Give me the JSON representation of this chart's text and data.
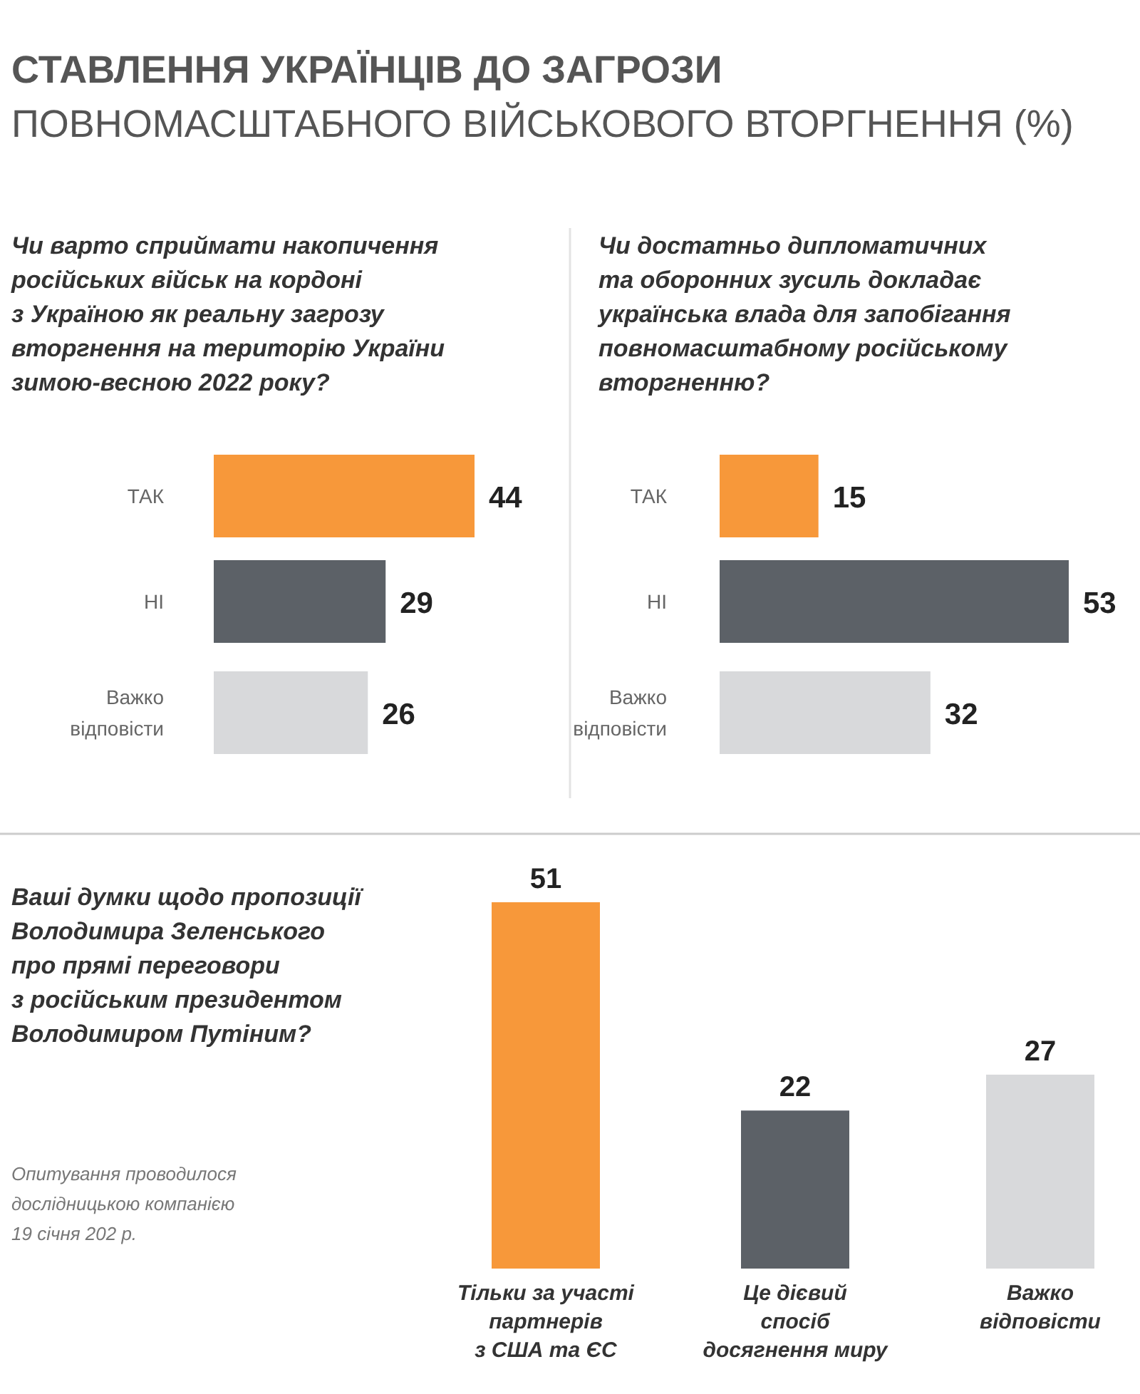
{
  "chart_data": [
    {
      "type": "bar",
      "orientation": "horizontal",
      "title": "СТАВЛЕННЯ УКРАЇНЦІВ ДО ЗАГРОЗИ\nПОВНОМАСШТАБНОГО ВІЙСЬКОВОГО ВТОРГНЕННЯ (%)",
      "subtitle": "Чи варто сприймати накопичення\nросійських військ на кордоні\nз Україною як реальну загрозу\nвторгнення на територію України\nзимою-весною 2022 року?",
      "categories": [
        "ТАК",
        "НІ",
        "Важко\nвідповісти"
      ],
      "values": [
        44,
        29,
        26
      ],
      "colors": [
        "#f7983a",
        "#5c6167",
        "#d8d9db"
      ],
      "data_labels": true
    },
    {
      "type": "bar",
      "orientation": "horizontal",
      "subtitle": "Чи достатньо дипломатичних\nта оборонних зусиль докладає\nукраїнська влада для запобігання\nповномасштабному російському\nвторгненню?",
      "categories": [
        "ТАК",
        "НІ",
        "Важко\nвідповісти"
      ],
      "values": [
        15,
        53,
        32
      ],
      "colors": [
        "#f7983a",
        "#5c6167",
        "#d8d9db"
      ],
      "data_labels": true
    },
    {
      "type": "bar",
      "subtitle": "Ваші думки щодо пропозиції\nВолодимира Зеленського\nпро прямі переговори\nз російським президентом\nВолодимиром Путіним?",
      "categories": [
        "Тільки за участі\nпартнерів\nз США та ЄС",
        "Це дієвий\nспосіб\nдосягнення миру",
        "Важко\nвідповісти"
      ],
      "values": [
        51,
        22,
        27
      ],
      "colors": [
        "#f7983a",
        "#5c6167",
        "#d8d9db"
      ],
      "data_labels": true,
      "annotations": [
        "Опитування проводилося\nдослідницькою компанією\n19 січня 202 р."
      ]
    }
  ]
}
